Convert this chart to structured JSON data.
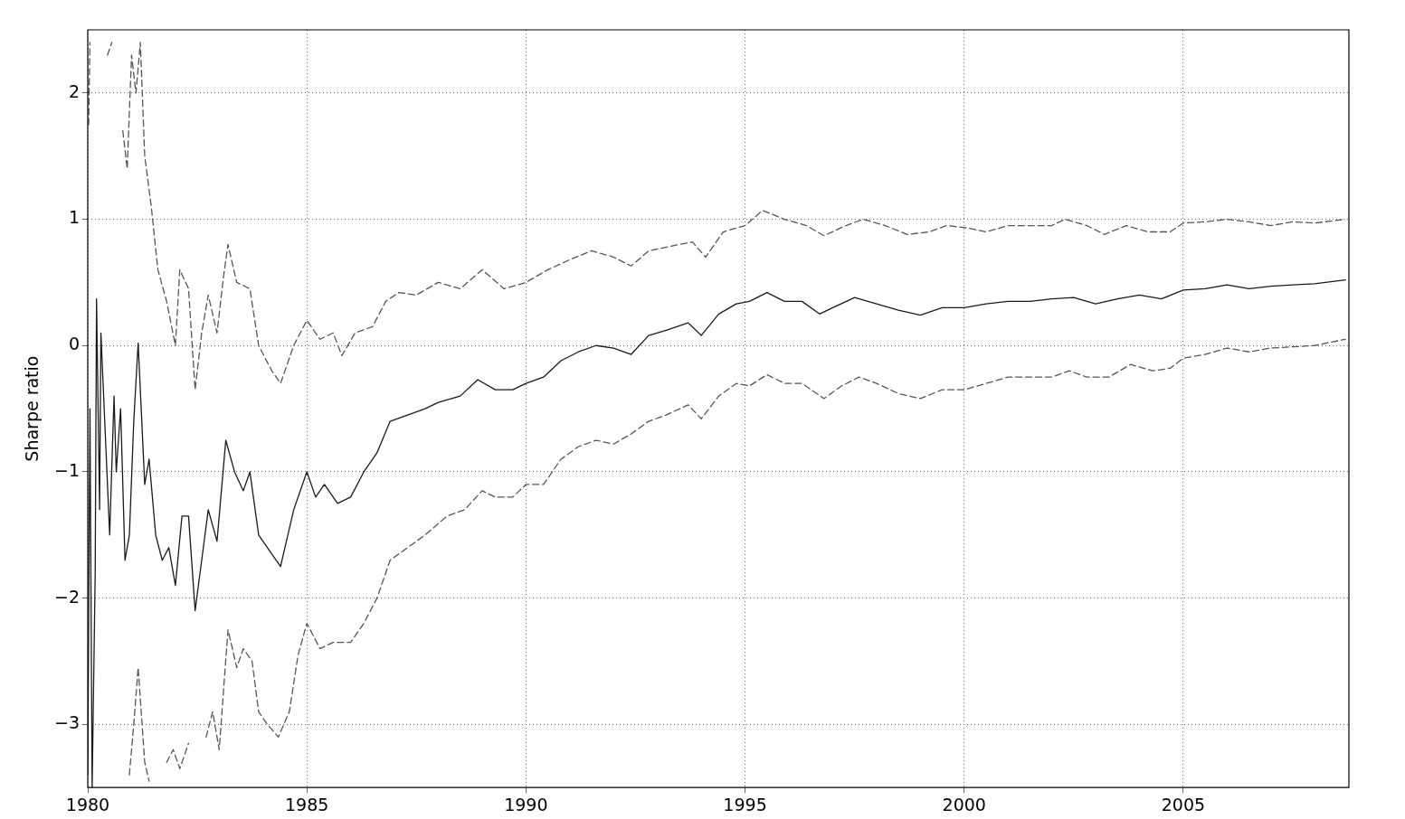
{
  "chart_data": {
    "type": "line",
    "ylabel": "Sharpe ratio",
    "xlim": [
      1980,
      2008.78
    ],
    "xticks": [
      1980,
      1985,
      1990,
      1995,
      2000,
      2005
    ],
    "ylim": [
      -3.5,
      2.5
    ],
    "yticks": [
      -3,
      -2,
      -1,
      0,
      1,
      2
    ],
    "grid": true,
    "legend": false,
    "marker": "none",
    "series": [
      {
        "color": "#555555",
        "line_style": "dashed",
        "x": [
          1980.02,
          1980.05,
          1980.3,
          1980.45,
          1980.55,
          1980.75,
          1980.8,
          1980.9,
          1981.0,
          1981.1,
          1981.2,
          1981.3,
          1981.45,
          1981.6,
          1981.8,
          1982.0,
          1982.1,
          1982.3,
          1982.45,
          1982.6,
          1982.75,
          1982.95,
          1983.1,
          1983.2,
          1983.4,
          1983.7,
          1983.9,
          1984.2,
          1984.4,
          1984.7,
          1985.0,
          1985.3,
          1985.6,
          1985.8,
          1986.1,
          1986.5,
          1986.8,
          1987.1,
          1987.5,
          1988.0,
          1988.5,
          1989.0,
          1989.5,
          1990.0,
          1990.5,
          1991.0,
          1991.5,
          1992.0,
          1992.4,
          1992.8,
          1993.5,
          1993.8,
          1994.1,
          1994.5,
          1995.0,
          1995.4,
          1995.9,
          1996.4,
          1996.8,
          1997.3,
          1997.7,
          1998.2,
          1998.7,
          1999.2,
          1999.6,
          2000.1,
          2000.5,
          2001.0,
          2001.5,
          2002.0,
          2002.3,
          2002.8,
          2003.2,
          2003.7,
          2004.2,
          2004.7,
          2005.0,
          2005.5,
          2006.0,
          2006.5,
          2007.0,
          2007.5,
          2008.0,
          2008.7
        ],
        "values": [
          1.75,
          2.4,
          null,
          2.3,
          2.4,
          null,
          1.7,
          1.4,
          2.3,
          2.0,
          2.4,
          1.5,
          1.1,
          0.6,
          0.35,
          0.0,
          0.6,
          0.45,
          -0.35,
          0.1,
          0.4,
          0.1,
          0.55,
          0.8,
          0.5,
          0.45,
          0.0,
          -0.2,
          -0.3,
          0.0,
          0.2,
          0.05,
          0.1,
          -0.08,
          0.1,
          0.15,
          0.35,
          0.42,
          0.4,
          0.5,
          0.45,
          0.6,
          0.45,
          0.5,
          0.6,
          0.68,
          0.75,
          0.7,
          0.63,
          0.75,
          0.8,
          0.82,
          0.7,
          0.9,
          0.95,
          1.07,
          1.0,
          0.95,
          0.87,
          0.95,
          1.0,
          0.95,
          0.88,
          0.9,
          0.95,
          0.93,
          0.9,
          0.95,
          0.95,
          0.95,
          1.0,
          0.95,
          0.88,
          0.95,
          0.9,
          0.9,
          0.97,
          0.98,
          1.0,
          0.98,
          0.95,
          0.98,
          0.97,
          1.0
        ]
      },
      {
        "color": "#1a1a1a",
        "line_style": "solid",
        "x": [
          1980.0,
          1980.05,
          1980.1,
          1980.17,
          1980.2,
          1980.27,
          1980.3,
          1980.4,
          1980.5,
          1980.6,
          1980.65,
          1980.75,
          1980.85,
          1980.95,
          1981.05,
          1981.15,
          1981.3,
          1981.4,
          1981.55,
          1981.7,
          1981.85,
          1982.0,
          1982.15,
          1982.3,
          1982.45,
          1982.6,
          1982.75,
          1982.95,
          1983.15,
          1983.35,
          1983.55,
          1983.7,
          1983.9,
          1984.2,
          1984.4,
          1984.7,
          1985.0,
          1985.2,
          1985.4,
          1985.7,
          1986.0,
          1986.3,
          1986.6,
          1986.9,
          1987.3,
          1987.7,
          1988.0,
          1988.5,
          1988.9,
          1989.3,
          1989.7,
          1990.0,
          1990.4,
          1990.8,
          1991.2,
          1991.6,
          1992.0,
          1992.4,
          1992.8,
          1993.2,
          1993.7,
          1994.0,
          1994.4,
          1994.8,
          1995.1,
          1995.5,
          1995.9,
          1996.3,
          1996.7,
          1997.0,
          1997.5,
          1998.0,
          1998.5,
          1999.0,
          1999.5,
          2000.0,
          2000.5,
          2001.0,
          2001.5,
          2002.0,
          2002.5,
          2003.0,
          2003.5,
          2004.0,
          2004.5,
          2005.0,
          2005.5,
          2006.0,
          2006.5,
          2007.0,
          2007.5,
          2008.0,
          2008.7
        ],
        "values": [
          -3.4,
          -0.5,
          -3.5,
          -1.8,
          0.37,
          -1.3,
          0.1,
          -0.7,
          -1.5,
          -0.4,
          -1.0,
          -0.5,
          -1.7,
          -1.5,
          -0.6,
          0.02,
          -1.1,
          -0.9,
          -1.5,
          -1.7,
          -1.6,
          -1.9,
          -1.35,
          -1.35,
          -2.1,
          -1.7,
          -1.3,
          -1.55,
          -0.75,
          -1.0,
          -1.15,
          -1.0,
          -1.5,
          -1.65,
          -1.75,
          -1.3,
          -1.0,
          -1.2,
          -1.1,
          -1.25,
          -1.2,
          -1.0,
          -0.85,
          -0.6,
          -0.55,
          -0.5,
          -0.45,
          -0.4,
          -0.27,
          -0.35,
          -0.35,
          -0.3,
          -0.25,
          -0.12,
          -0.05,
          0.0,
          -0.02,
          -0.07,
          0.08,
          0.12,
          0.18,
          0.08,
          0.25,
          0.33,
          0.35,
          0.42,
          0.35,
          0.35,
          0.25,
          0.3,
          0.38,
          0.33,
          0.28,
          0.24,
          0.3,
          0.3,
          0.33,
          0.35,
          0.35,
          0.37,
          0.38,
          0.33,
          0.37,
          0.4,
          0.37,
          0.44,
          0.45,
          0.48,
          0.45,
          0.47,
          0.48,
          0.49,
          0.52
        ]
      },
      {
        "color": "#555555",
        "line_style": "dashed",
        "x": [
          1980.95,
          1981.05,
          1981.15,
          1981.3,
          1981.4,
          1981.6,
          1981.8,
          1981.95,
          1982.1,
          1982.3,
          1982.45,
          1982.7,
          1982.85,
          1983.0,
          1983.2,
          1983.4,
          1983.55,
          1983.75,
          1983.9,
          1984.1,
          1984.35,
          1984.6,
          1984.8,
          1985.0,
          1985.3,
          1985.6,
          1986.0,
          1986.3,
          1986.6,
          1986.9,
          1987.3,
          1987.7,
          1988.2,
          1988.6,
          1989.0,
          1989.3,
          1989.7,
          1990.0,
          1990.4,
          1990.8,
          1991.2,
          1991.6,
          1992.0,
          1992.4,
          1992.8,
          1993.2,
          1993.7,
          1994.0,
          1994.4,
          1994.8,
          1995.1,
          1995.5,
          1995.9,
          1996.3,
          1996.8,
          1997.2,
          1997.6,
          1998.0,
          1998.5,
          1999.0,
          1999.5,
          2000.0,
          2000.5,
          2001.0,
          2001.5,
          2002.0,
          2002.4,
          2002.8,
          2003.3,
          2003.8,
          2004.3,
          2004.7,
          2005.0,
          2005.5,
          2006.0,
          2006.5,
          2007.0,
          2007.5,
          2008.0,
          2008.7
        ],
        "values": [
          -3.4,
          -3.0,
          -2.55,
          -3.3,
          -3.45,
          null,
          -3.3,
          -3.2,
          -3.35,
          -3.15,
          null,
          -3.1,
          -2.9,
          -3.2,
          -2.25,
          -2.55,
          -2.4,
          -2.5,
          -2.9,
          -3.0,
          -3.1,
          -2.9,
          -2.45,
          -2.2,
          -2.4,
          -2.35,
          -2.35,
          -2.2,
          -2.0,
          -1.7,
          -1.6,
          -1.5,
          -1.35,
          -1.3,
          -1.15,
          -1.2,
          -1.2,
          -1.1,
          -1.1,
          -0.9,
          -0.8,
          -0.75,
          -0.78,
          -0.7,
          -0.6,
          -0.55,
          -0.47,
          -0.58,
          -0.4,
          -0.3,
          -0.32,
          -0.23,
          -0.3,
          -0.3,
          -0.42,
          -0.32,
          -0.25,
          -0.3,
          -0.38,
          -0.42,
          -0.35,
          -0.35,
          -0.3,
          -0.25,
          -0.25,
          -0.25,
          -0.2,
          -0.25,
          -0.25,
          -0.15,
          -0.2,
          -0.18,
          -0.1,
          -0.07,
          -0.02,
          -0.05,
          -0.02,
          -0.01,
          0.0,
          0.05
        ]
      }
    ]
  }
}
